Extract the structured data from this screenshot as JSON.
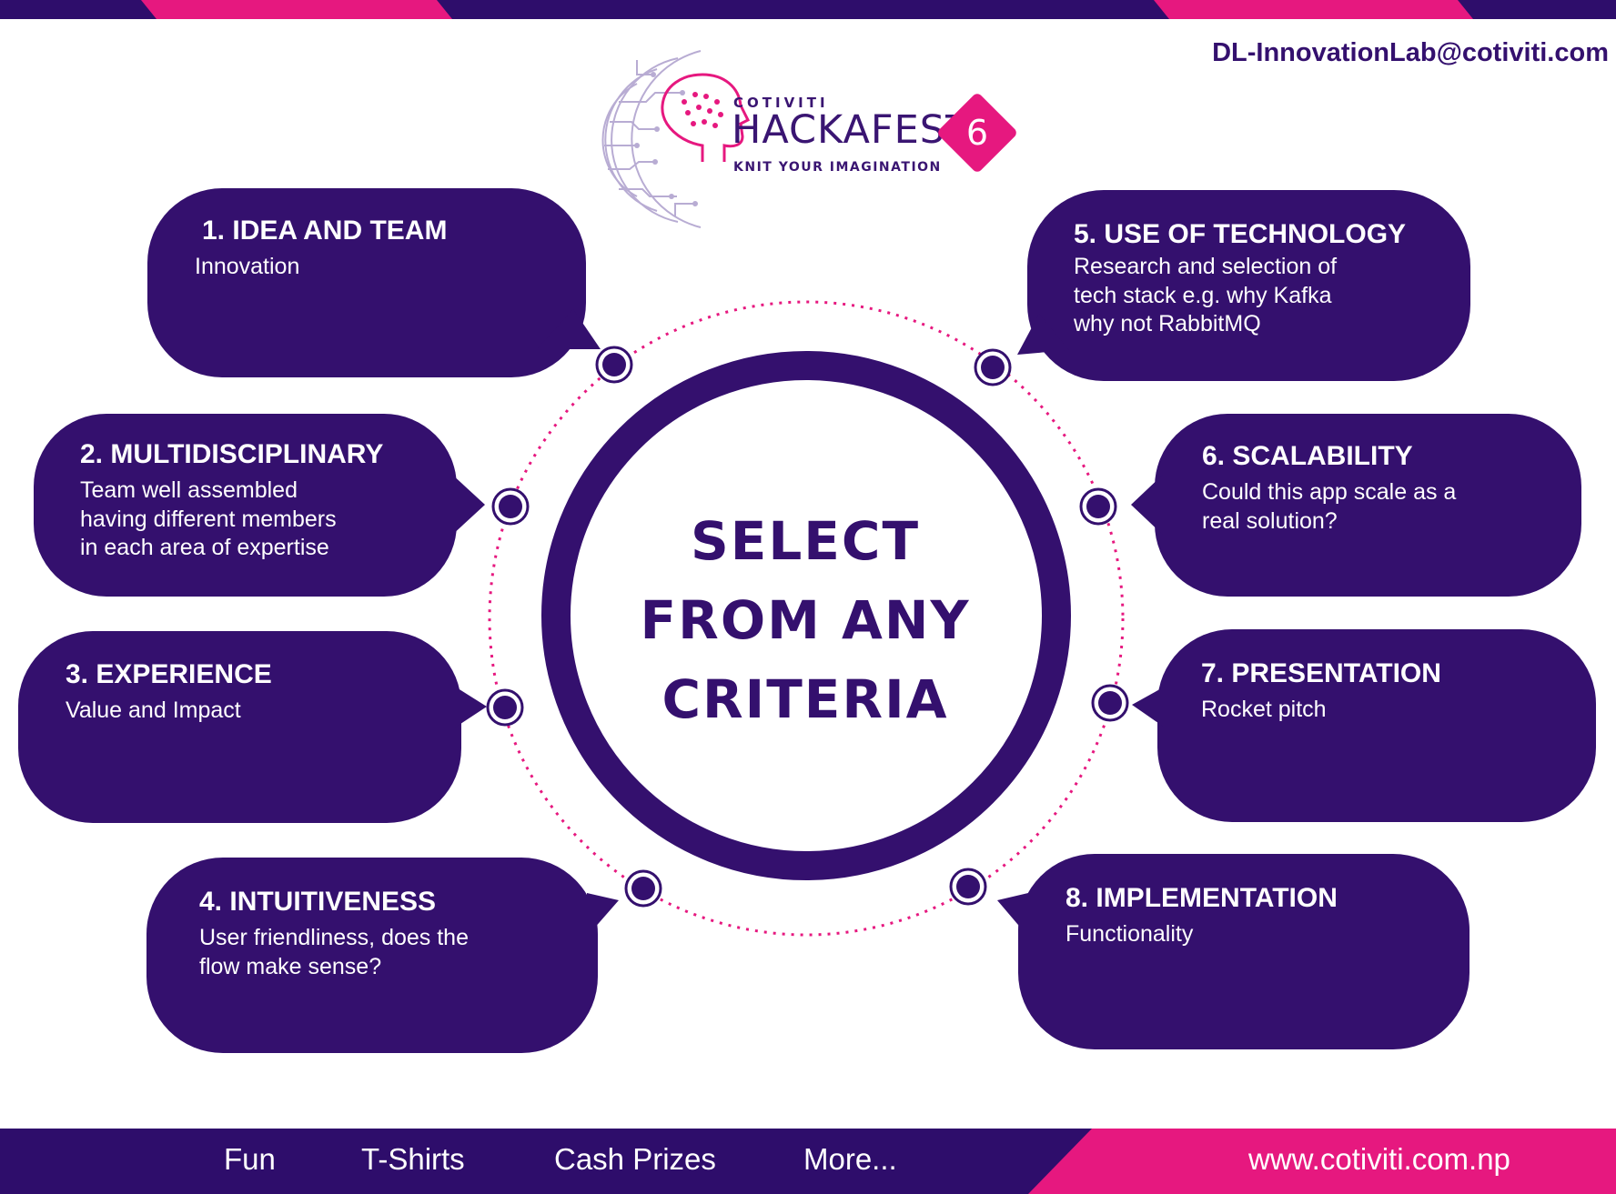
{
  "header": {
    "email": "DL-InnovationLab@cotiviti.com"
  },
  "logo": {
    "brand": "COTIVITI",
    "event": "HACKAFEST",
    "edition": "6",
    "tagline": "KNIT YOUR IMAGINATION"
  },
  "center": {
    "lines": [
      "SELECT",
      "FROM ANY",
      "CRITERIA"
    ]
  },
  "criteria": [
    {
      "title": "1. IDEA AND TEAM",
      "description": "Innovation"
    },
    {
      "title": "2. MULTIDISCIPLINARY",
      "description": "Team well assembled\nhaving different members\nin each area of expertise"
    },
    {
      "title": "3. EXPERIENCE",
      "description": "Value and Impact"
    },
    {
      "title": "4. INTUITIVENESS",
      "description": "User friendliness, does the\nflow make sense?"
    },
    {
      "title": "5. USE OF TECHNOLOGY",
      "description": "Research and selection of\ntech stack e.g. why Kafka\nwhy not RabbitMQ"
    },
    {
      "title": "6. SCALABILITY",
      "description": "Could this app scale as a\nreal solution?"
    },
    {
      "title": "7. PRESENTATION",
      "description": "Rocket pitch"
    },
    {
      "title": "8. IMPLEMENTATION",
      "description": "Functionality"
    }
  ],
  "footer": {
    "items": [
      "Fun",
      "T-Shirts",
      "Cash Prizes",
      "More..."
    ],
    "website": "www.cotiviti.com.np"
  },
  "colors": {
    "primary": "#34106e",
    "accent": "#e6187f",
    "background": "#ffffff"
  }
}
